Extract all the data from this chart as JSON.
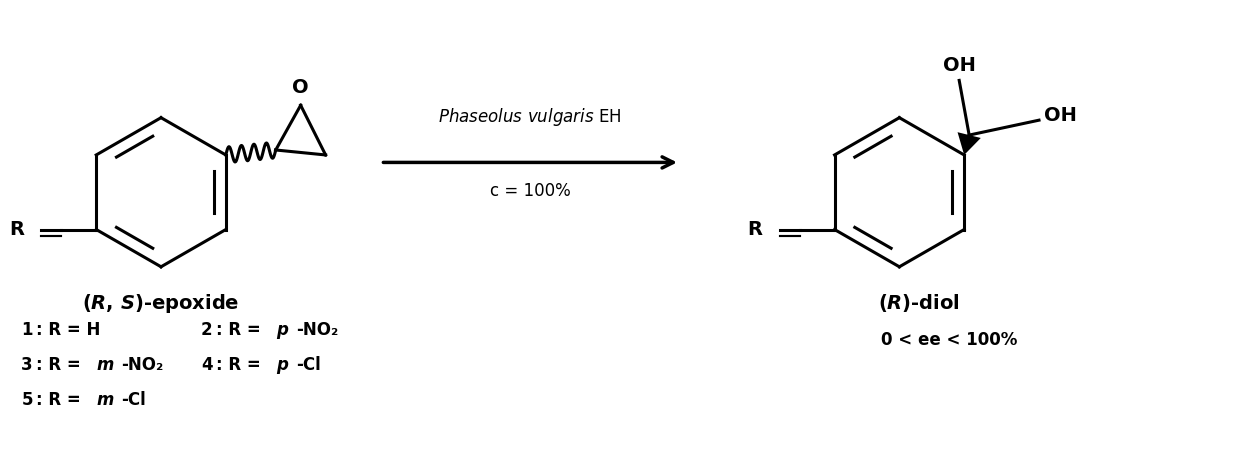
{
  "background_color": "#ffffff",
  "figsize": [
    12.4,
    4.62
  ],
  "dpi": 100,
  "arrow_label_italic": "Phaseolus vulgaris",
  "arrow_label_normal": " EH",
  "arrow_label2": "c = 100%",
  "left_label": "(  R, S)-epoxide",
  "right_label": "( R)-diol",
  "compounds": [
    {
      "num": "1",
      "colon": ": R = H",
      "col": 2
    },
    {
      "num": "2",
      "colon": ": R = ",
      "italic": "p",
      "rest": "-NO₂",
      "col": 3
    },
    {
      "num": "3",
      "colon": ": R = ",
      "italic": "m",
      "rest": "-NO₂",
      "col": 2
    },
    {
      "num": "4",
      "colon": ": R = ",
      "italic": "p",
      "rest": "-Cl",
      "col": 3
    },
    {
      "num": "5",
      "colon": ": R = ",
      "italic": "m",
      "rest": "-Cl",
      "col": 2
    }
  ],
  "ee_label": "0 < ee < 100%"
}
